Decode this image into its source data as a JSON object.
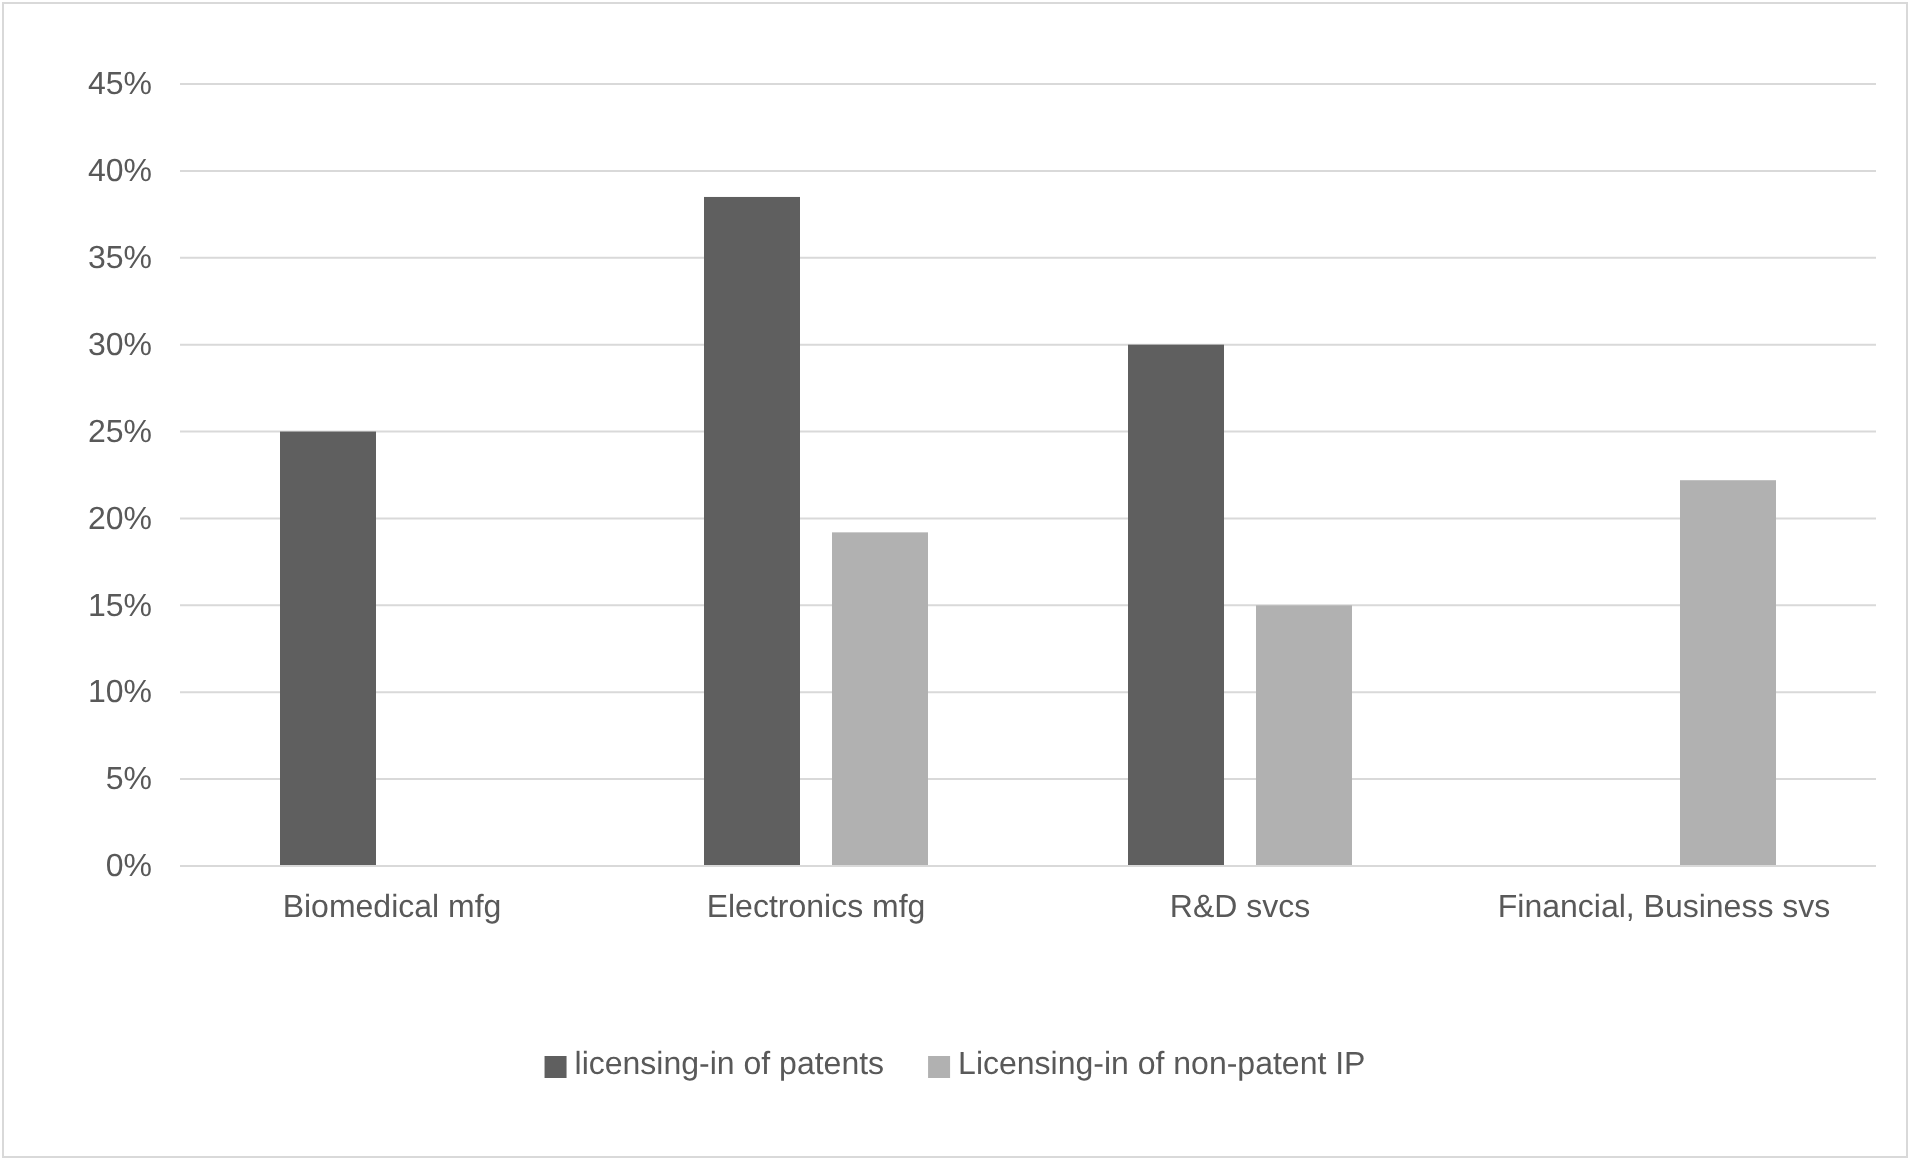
{
  "chart_data": {
    "type": "bar",
    "categories": [
      "Biomedical mfg",
      "Electronics mfg",
      "R&D svcs",
      "Financial, Business svs"
    ],
    "series": [
      {
        "name": "licensing-in of patents",
        "color": "#5f5f5f",
        "values": [
          25,
          38.5,
          30,
          null
        ]
      },
      {
        "name": "Licensing-in of non-patent IP",
        "color": "#b1b1b1",
        "values": [
          null,
          19.2,
          15,
          22.2
        ]
      }
    ],
    "ylim": [
      0,
      45
    ],
    "yticks": [
      {
        "value": 0,
        "label": "0%"
      },
      {
        "value": 5,
        "label": "5%"
      },
      {
        "value": 10,
        "label": "10%"
      },
      {
        "value": 15,
        "label": "15%"
      },
      {
        "value": 20,
        "label": "20%"
      },
      {
        "value": 25,
        "label": "25%"
      },
      {
        "value": 30,
        "label": "30%"
      },
      {
        "value": 35,
        "label": "35%"
      },
      {
        "value": 40,
        "label": "40%"
      },
      {
        "value": 45,
        "label": "45%"
      }
    ],
    "grid": "y",
    "legend": "bottom"
  }
}
